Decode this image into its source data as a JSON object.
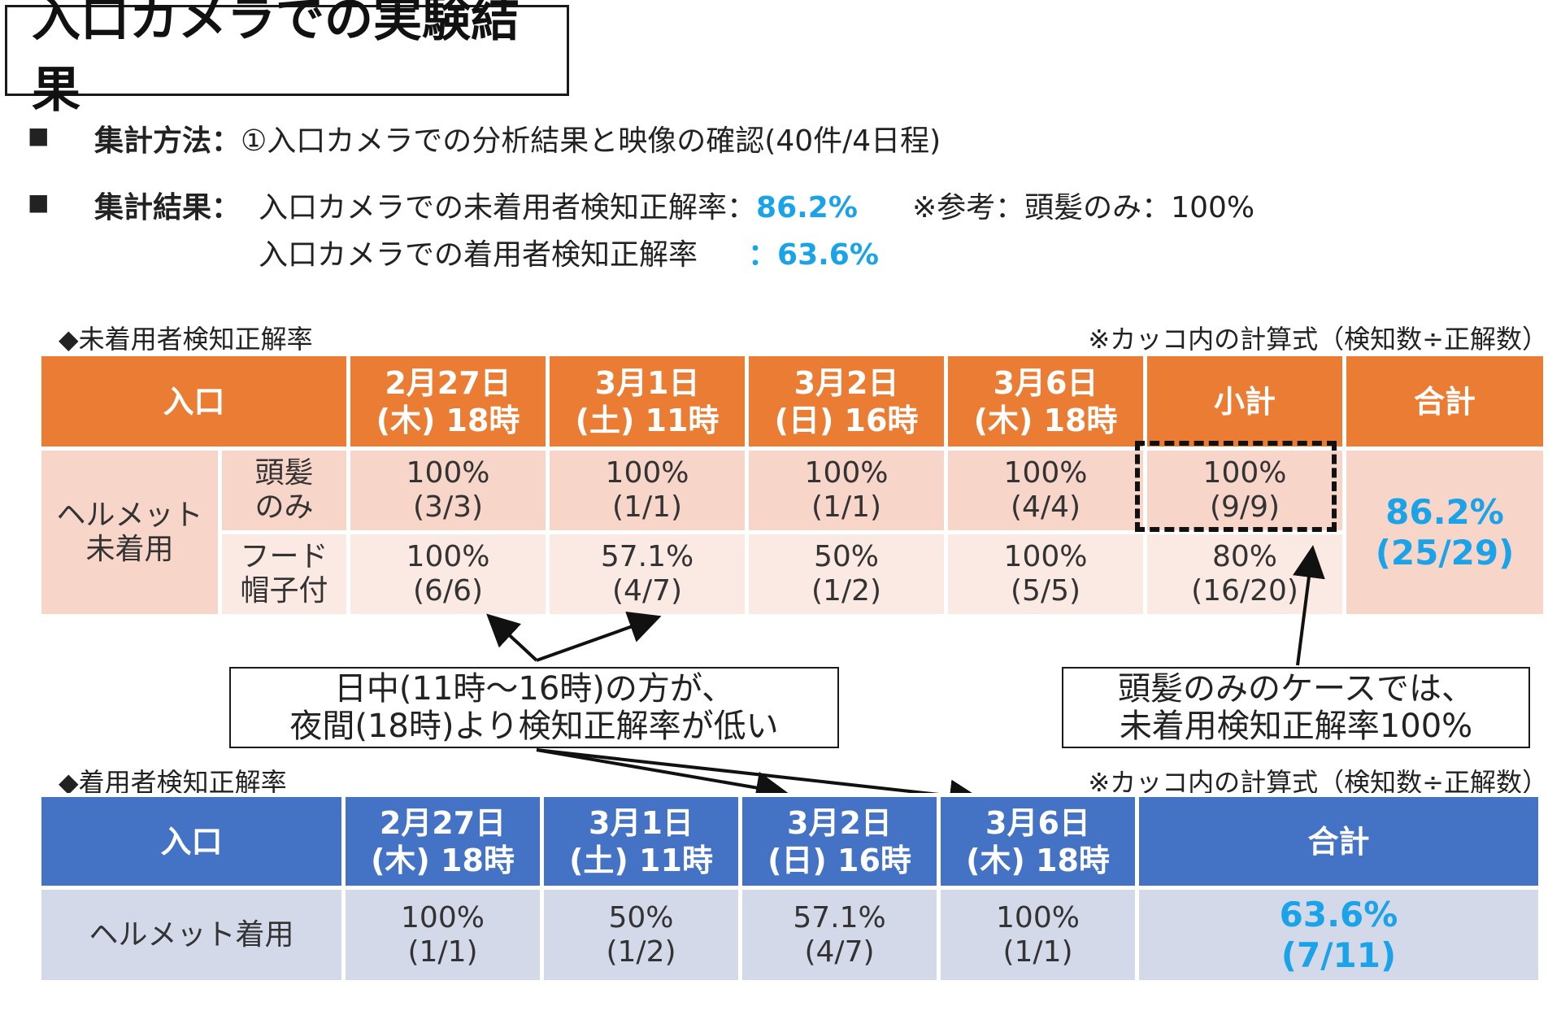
{
  "title": "入口カメラでの実験結果",
  "summary": {
    "bullet": "■",
    "method_label": "集計方法：",
    "method_text": "①入口カメラでの分析結果と映像の確認(40件/4日程)",
    "result_label": "集計結果：",
    "result_line1_text": "入口カメラでの未着用者検知正解率：",
    "result_line1_value": "86.2%",
    "result_line1_note": "※参考：頭髪のみ：100%",
    "result_line2_text": "入口カメラでの着用者検知正解率",
    "result_line2_colon": "：",
    "result_line2_value": "63.6%"
  },
  "table1": {
    "heading": "◆未着用者検知正解率",
    "note": "※カッコ内の計算式（検知数÷正解数）",
    "header": {
      "entrance": "入口",
      "dates": [
        {
          "date": "2月27日",
          "time": "(木) 18時"
        },
        {
          "date": "3月1日",
          "time": "(土) 11時"
        },
        {
          "date": "3月2日",
          "time": "(日) 16時"
        },
        {
          "date": "3月6日",
          "time": "(木) 18時"
        }
      ],
      "subtotal": "小計",
      "total": "合計"
    },
    "group_label": [
      "ヘルメット",
      "未着用"
    ],
    "rows": [
      {
        "label": [
          "頭髪",
          "のみ"
        ],
        "cells": [
          {
            "pct": "100%",
            "frac": "(3/3)"
          },
          {
            "pct": "100%",
            "frac": "(1/1)"
          },
          {
            "pct": "100%",
            "frac": "(1/1)"
          },
          {
            "pct": "100%",
            "frac": "(4/4)"
          },
          {
            "pct": "100%",
            "frac": "(9/9)"
          }
        ]
      },
      {
        "label": [
          "フード",
          "帽子付"
        ],
        "cells": [
          {
            "pct": "100%",
            "frac": "(6/6)"
          },
          {
            "pct": "57.1%",
            "frac": "(4/7)"
          },
          {
            "pct": "50%",
            "frac": "(1/2)"
          },
          {
            "pct": "100%",
            "frac": "(5/5)"
          },
          {
            "pct": "80%",
            "frac": "(16/20)"
          }
        ]
      }
    ],
    "total": {
      "pct": "86.2%",
      "frac": "(25/29)"
    }
  },
  "callouts": {
    "left": [
      "日中(11時～16時)の方が、",
      "夜間(18時)より検知正解率が低い"
    ],
    "right": [
      "頭髪のみのケースでは、",
      "未着用検知正解率100%"
    ]
  },
  "table2": {
    "heading": "◆着用者検知正解率",
    "note": "※カッコ内の計算式（検知数÷正解数）",
    "header": {
      "entrance": "入口",
      "dates": [
        {
          "date": "2月27日",
          "time": "(木) 18時"
        },
        {
          "date": "3月1日",
          "time": "(土) 11時"
        },
        {
          "date": "3月2日",
          "time": "(日) 16時"
        },
        {
          "date": "3月6日",
          "time": "(木) 18時"
        }
      ],
      "total": "合計"
    },
    "row_label": "ヘルメット着用",
    "cells": [
      {
        "pct": "100%",
        "frac": "(1/1)"
      },
      {
        "pct": "50%",
        "frac": "(1/2)"
      },
      {
        "pct": "57.1%",
        "frac": "(4/7)"
      },
      {
        "pct": "100%",
        "frac": "(1/1)"
      }
    ],
    "total": {
      "pct": "63.6%",
      "frac": "(7/11)"
    }
  },
  "colors": {
    "accent_blue_text": "#1aa3e8",
    "orange_header": "#ea7d33",
    "orange_row_dark": "#f7d5c8",
    "orange_row_light": "#fbe9e3",
    "blue_header": "#4472c4",
    "blue_row": "#d4d9ea"
  }
}
